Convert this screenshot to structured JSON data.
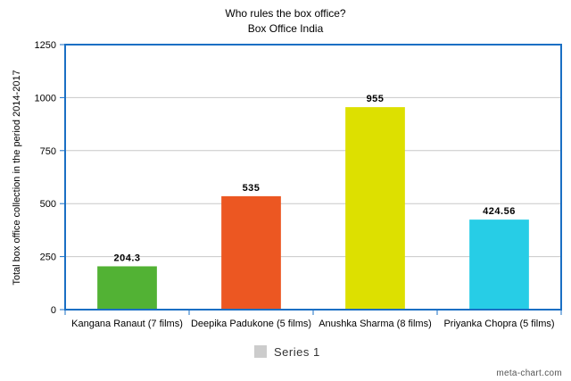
{
  "chart_data": {
    "type": "bar",
    "title": "Who rules the box office?",
    "subtitle": "Box Office India",
    "ylabel": "Total box office collection in the period 2014-2017",
    "xlabel": "",
    "categories": [
      "Kangana Ranaut (7 films)",
      "Deepika Padukone (5 films)",
      "Anushka Sharma (8 films)",
      "Priyanka Chopra (5 films)"
    ],
    "series": [
      {
        "name": "Series 1",
        "values": [
          204.3,
          535,
          955,
          424.56
        ],
        "data_labels": [
          "204.3",
          "535",
          "955",
          "424.56"
        ],
        "colors": [
          "#52b234",
          "#ec5722",
          "#dde000",
          "#27cde6"
        ]
      }
    ],
    "ylim": [
      0,
      1250
    ],
    "yticks": [
      0,
      250,
      500,
      750,
      1000,
      1250
    ],
    "grid": true,
    "frame_color": "#1a6fc4",
    "legend": {
      "placement": "bottom-center",
      "swatch_color": "#cccccc"
    },
    "credit": "meta-chart.com"
  }
}
